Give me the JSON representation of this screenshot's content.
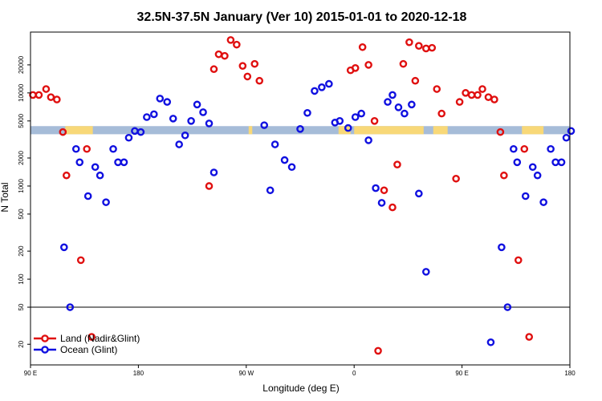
{
  "chart_data": {
    "type": "scatter",
    "title": "32.5N-37.5N January (Ver 10)   2015-01-01 to 2020-12-18",
    "xlabel": "Longitude (deg E)",
    "ylabel": "N Total",
    "xscale": "linear",
    "yscale": "log",
    "xlim": [
      90,
      540
    ],
    "ylim": [
      12,
      45000
    ],
    "x_ticks": [
      {
        "value": 90,
        "label": "90 E"
      },
      {
        "value": 180,
        "label": "180"
      },
      {
        "value": 270,
        "label": "90 W"
      },
      {
        "value": 360,
        "label": "0"
      },
      {
        "value": 450,
        "label": "90 E"
      },
      {
        "value": 540,
        "label": "180"
      }
    ],
    "y_ticks": [
      {
        "value": 20,
        "label": "20"
      },
      {
        "value": 50,
        "label": "50"
      },
      {
        "value": 100,
        "label": "100"
      },
      {
        "value": 200,
        "label": "200"
      },
      {
        "value": 500,
        "label": "500"
      },
      {
        "value": 1000,
        "label": "1000"
      },
      {
        "value": 2000,
        "label": "2000"
      },
      {
        "value": 5000,
        "label": "5000"
      },
      {
        "value": 10000,
        "label": "10000"
      },
      {
        "value": 20000,
        "label": "20000"
      }
    ],
    "reference_line": {
      "y": 50
    },
    "band": {
      "y_low": 3600,
      "y_high": 4400,
      "ocean_color": "#a6bcd8",
      "land_color": "#f8d878"
    },
    "land_longitudes": [
      [
        119,
        142
      ],
      [
        272,
        275
      ],
      [
        347,
        357
      ],
      [
        360,
        418
      ],
      [
        426,
        438
      ],
      [
        500,
        518
      ]
    ],
    "series": [
      {
        "name": "Land (Nadir&Glint)",
        "color": "#e01010",
        "points": [
          [
            92,
            9500
          ],
          [
            97,
            9500
          ],
          [
            103,
            11000
          ],
          [
            107,
            9000
          ],
          [
            112,
            8500
          ],
          [
            117,
            3800
          ],
          [
            120,
            1300
          ],
          [
            132,
            160
          ],
          [
            137,
            2500
          ],
          [
            141,
            24
          ],
          [
            239,
            1000
          ],
          [
            243,
            18000
          ],
          [
            247,
            26000
          ],
          [
            252,
            25000
          ],
          [
            257,
            37000
          ],
          [
            262,
            33000
          ],
          [
            267,
            19500
          ],
          [
            271,
            15000
          ],
          [
            277,
            20500
          ],
          [
            281,
            13500
          ],
          [
            357,
            17500
          ],
          [
            361,
            18500
          ],
          [
            367,
            31000
          ],
          [
            372,
            20000
          ],
          [
            377,
            5000
          ],
          [
            380,
            17
          ],
          [
            385,
            900
          ],
          [
            392,
            590
          ],
          [
            396,
            1700
          ],
          [
            401,
            20500
          ],
          [
            406,
            35000
          ],
          [
            411,
            13500
          ],
          [
            414,
            32000
          ],
          [
            420,
            30000
          ],
          [
            425,
            30500
          ],
          [
            429,
            11000
          ],
          [
            433,
            6000
          ],
          [
            445,
            1200
          ],
          [
            448,
            8000
          ],
          [
            453,
            10000
          ],
          [
            458,
            9500
          ],
          [
            463,
            9500
          ],
          [
            467,
            11000
          ],
          [
            472,
            9000
          ],
          [
            477,
            8500
          ],
          [
            482,
            3800
          ],
          [
            485,
            1300
          ],
          [
            497,
            160
          ],
          [
            502,
            2500
          ],
          [
            506,
            24
          ]
        ]
      },
      {
        "name": "Ocean (Glint)",
        "color": "#1010e0",
        "points": [
          [
            118,
            220
          ],
          [
            123,
            50
          ],
          [
            128,
            2500
          ],
          [
            131,
            1800
          ],
          [
            138,
            780
          ],
          [
            144,
            1600
          ],
          [
            148,
            1300
          ],
          [
            153,
            670
          ],
          [
            159,
            2500
          ],
          [
            163,
            1800
          ],
          [
            168,
            1800
          ],
          [
            172,
            3300
          ],
          [
            177,
            3900
          ],
          [
            182,
            3800
          ],
          [
            187,
            5500
          ],
          [
            193,
            5900
          ],
          [
            198,
            8700
          ],
          [
            204,
            8000
          ],
          [
            209,
            5300
          ],
          [
            214,
            2800
          ],
          [
            219,
            3500
          ],
          [
            224,
            5000
          ],
          [
            229,
            7500
          ],
          [
            234,
            6200
          ],
          [
            239,
            4700
          ],
          [
            243,
            1400
          ],
          [
            285,
            4500
          ],
          [
            290,
            900
          ],
          [
            294,
            2800
          ],
          [
            302,
            1900
          ],
          [
            308,
            1600
          ],
          [
            315,
            4100
          ],
          [
            321,
            6100
          ],
          [
            327,
            10500
          ],
          [
            333,
            11500
          ],
          [
            339,
            12500
          ],
          [
            344,
            4800
          ],
          [
            348,
            5000
          ],
          [
            355,
            4200
          ],
          [
            361,
            5500
          ],
          [
            366,
            6000
          ],
          [
            372,
            3100
          ],
          [
            378,
            950
          ],
          [
            383,
            660
          ],
          [
            388,
            8000
          ],
          [
            392,
            9500
          ],
          [
            397,
            7000
          ],
          [
            402,
            6000
          ],
          [
            408,
            7500
          ],
          [
            414,
            830
          ],
          [
            420,
            120
          ],
          [
            474,
            21
          ],
          [
            483,
            220
          ],
          [
            488,
            50
          ],
          [
            493,
            2500
          ],
          [
            496,
            1800
          ],
          [
            503,
            780
          ],
          [
            509,
            1600
          ],
          [
            513,
            1300
          ],
          [
            518,
            670
          ],
          [
            524,
            2500
          ],
          [
            528,
            1800
          ],
          [
            533,
            1800
          ],
          [
            537,
            3300
          ],
          [
            541,
            3900
          ]
        ]
      }
    ],
    "legend": {
      "position": "bottom-left",
      "entries": [
        {
          "label": "Land (Nadir&Glint)",
          "color": "#e01010"
        },
        {
          "label": "Ocean (Glint)",
          "color": "#1010e0"
        }
      ]
    }
  }
}
